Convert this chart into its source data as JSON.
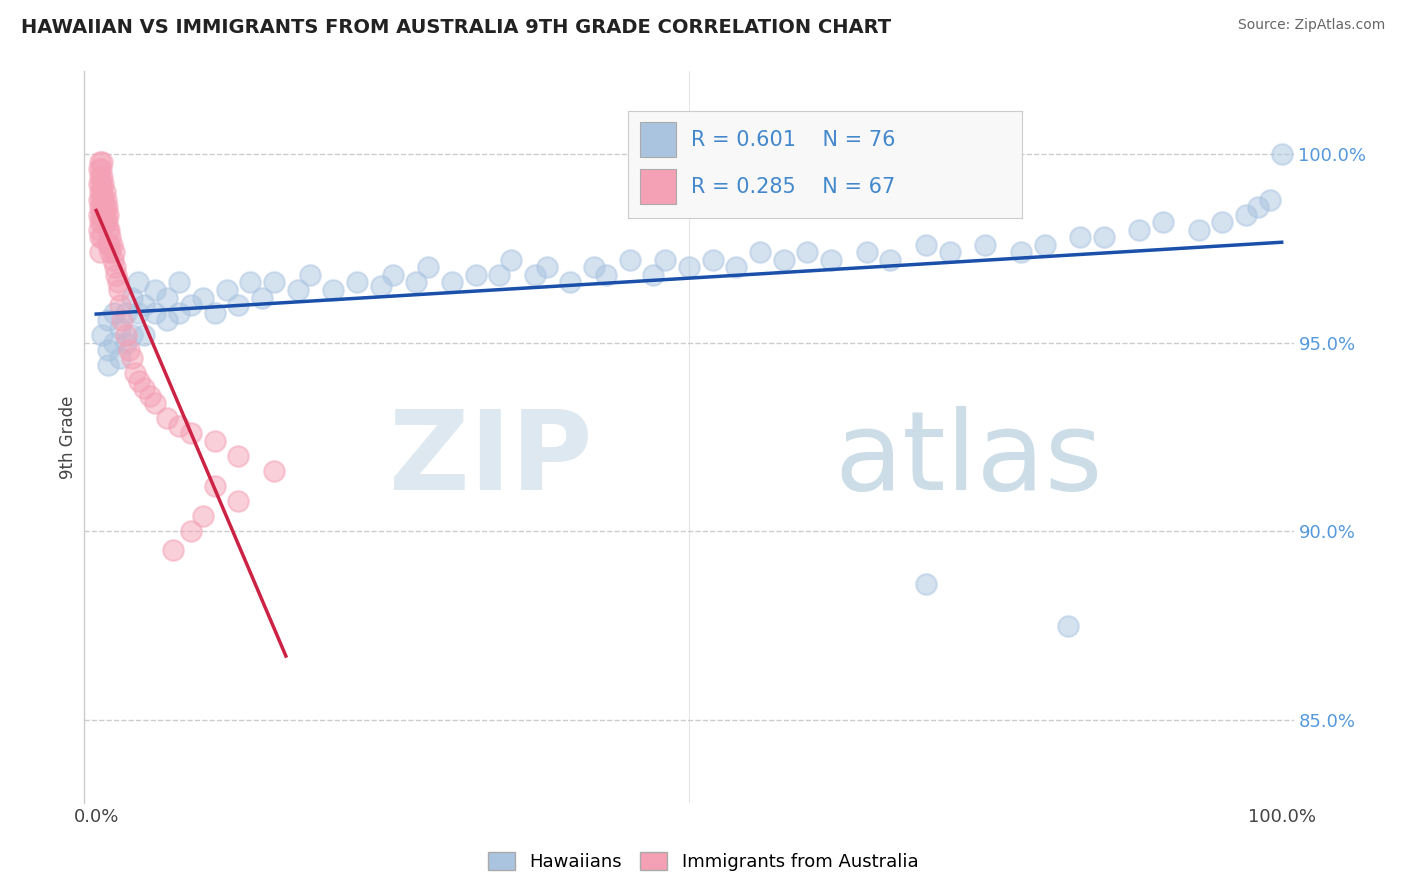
{
  "title": "HAWAIIAN VS IMMIGRANTS FROM AUSTRALIA 9TH GRADE CORRELATION CHART",
  "source_text": "Source: ZipAtlas.com",
  "ylabel": "9th Grade",
  "legend_label_blue": "Hawaiians",
  "legend_label_pink": "Immigrants from Australia",
  "R_blue": 0.601,
  "N_blue": 76,
  "R_pink": 0.285,
  "N_pink": 67,
  "blue_color": "#aac4e0",
  "pink_color": "#f4a0b5",
  "blue_line_color": "#1a4faa",
  "pink_line_color": "#cc2244",
  "background_color": "#ffffff",
  "grid_color": "#cccccc",
  "blue_scatter_x": [
    0.005,
    0.01,
    0.01,
    0.01,
    0.015,
    0.015,
    0.02,
    0.02,
    0.025,
    0.025,
    0.03,
    0.03,
    0.035,
    0.035,
    0.04,
    0.04,
    0.05,
    0.05,
    0.06,
    0.06,
    0.07,
    0.07,
    0.08,
    0.09,
    0.1,
    0.11,
    0.12,
    0.13,
    0.14,
    0.15,
    0.17,
    0.18,
    0.2,
    0.22,
    0.24,
    0.25,
    0.27,
    0.28,
    0.3,
    0.32,
    0.34,
    0.35,
    0.37,
    0.38,
    0.4,
    0.42,
    0.43,
    0.45,
    0.47,
    0.48,
    0.5,
    0.52,
    0.54,
    0.56,
    0.58,
    0.6,
    0.62,
    0.65,
    0.67,
    0.7,
    0.72,
    0.75,
    0.78,
    0.8,
    0.83,
    0.85,
    0.88,
    0.9,
    0.93,
    0.95,
    0.97,
    0.98,
    0.99,
    1.0,
    0.82,
    0.7
  ],
  "blue_scatter_y": [
    0.952,
    0.948,
    0.956,
    0.944,
    0.95,
    0.958,
    0.946,
    0.954,
    0.95,
    0.958,
    0.952,
    0.962,
    0.958,
    0.966,
    0.952,
    0.96,
    0.958,
    0.964,
    0.956,
    0.962,
    0.958,
    0.966,
    0.96,
    0.962,
    0.958,
    0.964,
    0.96,
    0.966,
    0.962,
    0.966,
    0.964,
    0.968,
    0.964,
    0.966,
    0.965,
    0.968,
    0.966,
    0.97,
    0.966,
    0.968,
    0.968,
    0.972,
    0.968,
    0.97,
    0.966,
    0.97,
    0.968,
    0.972,
    0.968,
    0.972,
    0.97,
    0.972,
    0.97,
    0.974,
    0.972,
    0.974,
    0.972,
    0.974,
    0.972,
    0.976,
    0.974,
    0.976,
    0.974,
    0.976,
    0.978,
    0.978,
    0.98,
    0.982,
    0.98,
    0.982,
    0.984,
    0.986,
    0.988,
    1.0,
    0.875,
    0.886
  ],
  "pink_scatter_x": [
    0.002,
    0.002,
    0.002,
    0.002,
    0.002,
    0.003,
    0.003,
    0.003,
    0.003,
    0.003,
    0.003,
    0.003,
    0.004,
    0.004,
    0.004,
    0.004,
    0.005,
    0.005,
    0.005,
    0.005,
    0.005,
    0.005,
    0.006,
    0.006,
    0.006,
    0.007,
    0.007,
    0.007,
    0.008,
    0.008,
    0.009,
    0.009,
    0.01,
    0.01,
    0.01,
    0.011,
    0.011,
    0.012,
    0.012,
    0.013,
    0.014,
    0.015,
    0.016,
    0.017,
    0.018,
    0.019,
    0.02,
    0.022,
    0.025,
    0.028,
    0.03,
    0.033,
    0.036,
    0.04,
    0.045,
    0.05,
    0.06,
    0.07,
    0.08,
    0.1,
    0.12,
    0.15,
    0.1,
    0.12,
    0.09,
    0.08,
    0.065
  ],
  "pink_scatter_y": [
    0.996,
    0.992,
    0.988,
    0.984,
    0.98,
    0.998,
    0.994,
    0.99,
    0.986,
    0.982,
    0.978,
    0.974,
    0.996,
    0.992,
    0.988,
    0.984,
    0.998,
    0.994,
    0.99,
    0.986,
    0.982,
    0.978,
    0.992,
    0.988,
    0.984,
    0.99,
    0.986,
    0.982,
    0.988,
    0.984,
    0.986,
    0.982,
    0.984,
    0.98,
    0.976,
    0.98,
    0.976,
    0.978,
    0.974,
    0.976,
    0.972,
    0.974,
    0.97,
    0.968,
    0.966,
    0.964,
    0.96,
    0.956,
    0.952,
    0.948,
    0.946,
    0.942,
    0.94,
    0.938,
    0.936,
    0.934,
    0.93,
    0.928,
    0.926,
    0.924,
    0.92,
    0.916,
    0.912,
    0.908,
    0.904,
    0.9,
    0.895
  ]
}
